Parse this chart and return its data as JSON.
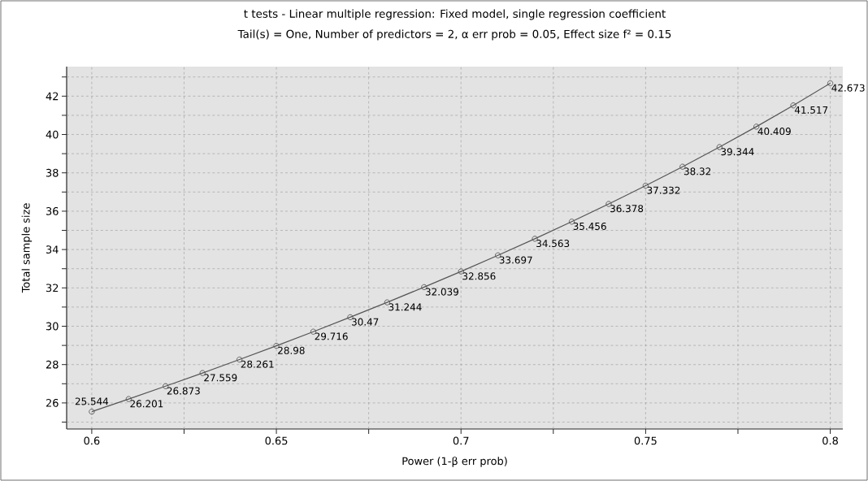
{
  "chart_data": {
    "type": "line",
    "title": "t tests - Linear multiple regression: Fixed model, single regression coefficient",
    "subtitle": "Tail(s) = One, Number of predictors = 2, α err prob = 0.05, Effect size f² = 0.15",
    "xlabel": "Power (1-β err prob)",
    "ylabel": "Total sample size",
    "x": [
      0.6,
      0.61,
      0.62,
      0.63,
      0.64,
      0.65,
      0.66,
      0.67,
      0.68,
      0.69,
      0.7,
      0.71,
      0.72,
      0.73,
      0.74,
      0.75,
      0.76,
      0.77,
      0.78,
      0.79,
      0.8
    ],
    "series": [
      {
        "color": "#555555",
        "values": [
          25.544,
          26.201,
          26.873,
          27.559,
          28.261,
          28.98,
          29.716,
          30.47,
          31.244,
          32.039,
          32.856,
          33.697,
          34.563,
          35.456,
          36.378,
          37.332,
          38.32,
          39.344,
          40.409,
          41.517,
          42.673
        ]
      }
    ],
    "data_labels": true,
    "marker": "circle",
    "grid": true,
    "xlim": [
      0.5932,
      0.8034
    ],
    "ylim": [
      24.64,
      43.54
    ],
    "xticks": [
      0.6,
      {
        "value": 0.625,
        "label": null
      },
      0.65,
      {
        "value": 0.675,
        "label": null
      },
      0.7,
      {
        "value": 0.725,
        "label": null
      },
      0.75,
      {
        "value": 0.775,
        "label": null
      },
      0.8
    ],
    "yticks": [
      {
        "value": 25,
        "label": null
      },
      26,
      {
        "value": 27,
        "label": null
      },
      28,
      {
        "value": 29,
        "label": null
      },
      30,
      {
        "value": 31,
        "label": null
      },
      32,
      {
        "value": 33,
        "label": null
      },
      34,
      {
        "value": 35,
        "label": null
      },
      36,
      {
        "value": 37,
        "label": null
      },
      38,
      {
        "value": 39,
        "label": null
      },
      40,
      {
        "value": 41,
        "label": null
      },
      42,
      {
        "value": 43,
        "label": null
      }
    ]
  }
}
